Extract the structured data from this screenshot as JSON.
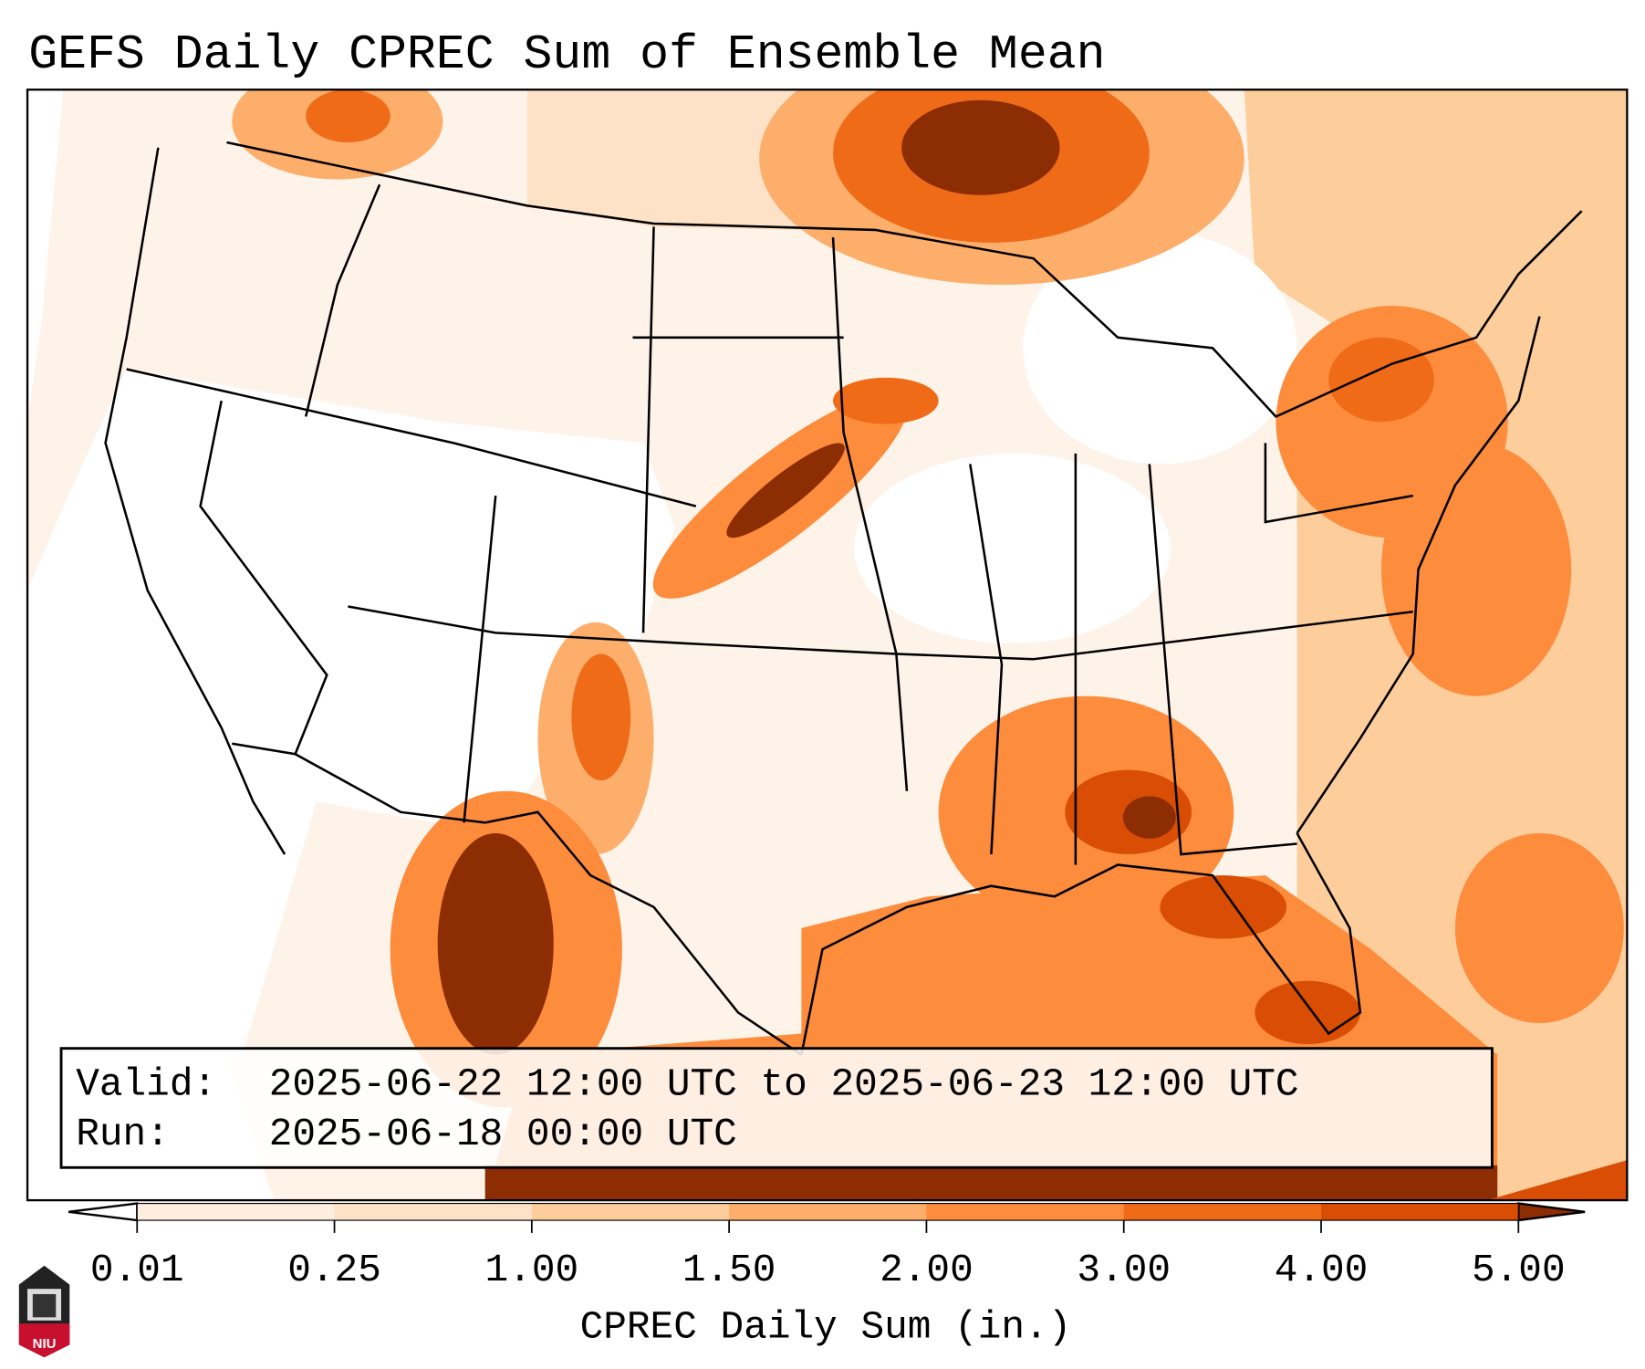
{
  "title": "GEFS Daily CPREC Sum of Ensemble Mean",
  "info_box": {
    "valid_label": "Valid:",
    "valid_value": "2025-06-22 12:00 UTC to 2025-06-23 12:00 UTC",
    "run_label": "Run:",
    "run_value": "2025-06-18 00:00 UTC"
  },
  "colorbar": {
    "label": "CPREC Daily Sum (in.)",
    "ticks": [
      "0.01",
      "0.25",
      "1.00",
      "1.50",
      "2.00",
      "3.00",
      "4.00",
      "5.00"
    ],
    "bin_colors": [
      "#fdeee0",
      "#fde2c8",
      "#fdcd9c",
      "#fdae6b",
      "#fd8c3c",
      "#f06b18",
      "#d94d04"
    ],
    "under_color": "#ffffff",
    "over_color": "#8c2d04"
  },
  "logo": {
    "text": "NIU"
  },
  "map_colors": {
    "bg": "#fef3e8",
    "c1": "#fde2c8",
    "c2": "#fdcd9c",
    "c3": "#fdae6b",
    "c4": "#fd8c3c",
    "c5": "#f06b18",
    "c6": "#d94d04",
    "c7": "#8c2d04"
  }
}
